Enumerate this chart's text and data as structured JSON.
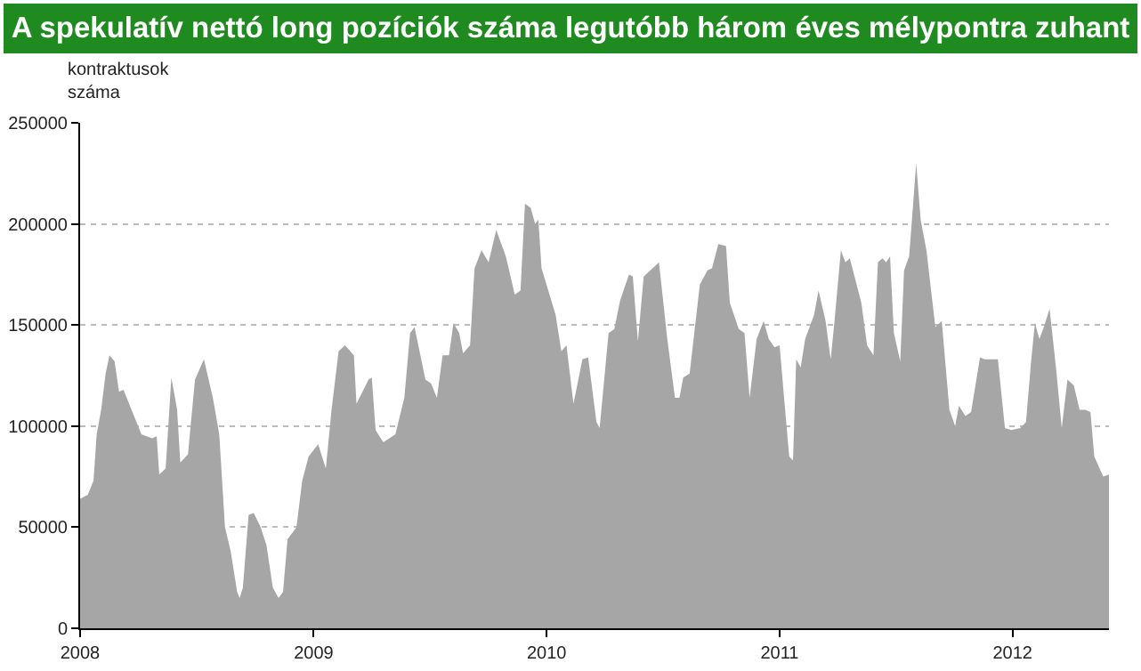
{
  "chart_data": {
    "type": "area",
    "title": "A spekulatív nettó long pozíciók száma legutóbb három éves mélypontra zuhant",
    "ylabel": "kontraktusok száma",
    "x": [
      "2008-01-01",
      "2008-01-13",
      "2008-01-22",
      "2008-01-27",
      "2008-02-03",
      "2008-02-10",
      "2008-02-16",
      "2008-02-24",
      "2008-03-02",
      "2008-03-09",
      "2008-03-23",
      "2008-04-06",
      "2008-04-23",
      "2008-04-30",
      "2008-05-04",
      "2008-05-14",
      "2008-05-23",
      "2008-06-01",
      "2008-06-06",
      "2008-06-18",
      "2008-06-29",
      "2008-07-13",
      "2008-07-27",
      "2008-08-06",
      "2008-08-15",
      "2008-08-24",
      "2008-09-03",
      "2008-09-07",
      "2008-09-12",
      "2008-09-21",
      "2008-09-29",
      "2008-10-10",
      "2008-10-19",
      "2008-10-29",
      "2008-11-07",
      "2008-11-14",
      "2008-11-21",
      "2008-12-05",
      "2008-12-14",
      "2008-12-24",
      "2009-01-08",
      "2009-01-20",
      "2009-01-29",
      "2009-02-09",
      "2009-02-19",
      "2009-03-05",
      "2009-03-09",
      "2009-03-28",
      "2009-04-02",
      "2009-04-08",
      "2009-04-20",
      "2009-05-09",
      "2009-05-23",
      "2009-06-01",
      "2009-06-08",
      "2009-06-25",
      "2009-07-04",
      "2009-07-13",
      "2009-07-22",
      "2009-08-01",
      "2009-08-08",
      "2009-08-17",
      "2009-08-23",
      "2009-09-03",
      "2009-09-10",
      "2009-09-21",
      "2009-10-02",
      "2009-10-14",
      "2009-10-29",
      "2009-11-12",
      "2009-11-21",
      "2009-11-28",
      "2009-12-07",
      "2009-12-14",
      "2009-12-19",
      "2009-12-24",
      "2010-01-15",
      "2010-01-24",
      "2010-02-01",
      "2010-02-12",
      "2010-02-26",
      "2010-03-07",
      "2010-03-20",
      "2010-03-25",
      "2010-04-08",
      "2010-04-17",
      "2010-04-26",
      "2010-05-10",
      "2010-05-16",
      "2010-05-24",
      "2010-06-02",
      "2010-06-26",
      "2010-07-09",
      "2010-07-21",
      "2010-07-28",
      "2010-08-03",
      "2010-08-13",
      "2010-08-29",
      "2010-09-10",
      "2010-09-17",
      "2010-09-27",
      "2010-10-09",
      "2010-10-15",
      "2010-10-29",
      "2010-11-07",
      "2010-11-15",
      "2010-11-26",
      "2010-12-07",
      "2010-12-15",
      "2010-12-24",
      "2011-01-01",
      "2011-01-08",
      "2011-01-16",
      "2011-01-22",
      "2011-01-27",
      "2011-02-03",
      "2011-02-10",
      "2011-02-24",
      "2011-03-03",
      "2011-03-14",
      "2011-03-22",
      "2011-03-28",
      "2011-04-07",
      "2011-04-14",
      "2011-04-21",
      "2011-05-09",
      "2011-05-18",
      "2011-05-28",
      "2011-06-04",
      "2011-06-11",
      "2011-06-17",
      "2011-06-23",
      "2011-06-29",
      "2011-07-09",
      "2011-07-15",
      "2011-07-23",
      "2011-08-03",
      "2011-08-10",
      "2011-08-19",
      "2011-09-02",
      "2011-09-12",
      "2011-09-24",
      "2011-10-03",
      "2011-10-09",
      "2011-10-19",
      "2011-10-28",
      "2011-11-11",
      "2011-11-18",
      "2011-11-30",
      "2011-12-09",
      "2011-12-20",
      "2011-12-30",
      "2012-01-13",
      "2012-01-22",
      "2012-01-30",
      "2012-02-05",
      "2012-02-12",
      "2012-02-19",
      "2012-02-28",
      "2012-03-09",
      "2012-03-18",
      "2012-03-27",
      "2012-04-06",
      "2012-04-15",
      "2012-04-24",
      "2012-05-02",
      "2012-05-08",
      "2012-05-22",
      "2012-05-31"
    ],
    "series": [
      {
        "color": "#a6a6a6",
        "values": [
          64000,
          66000,
          73000,
          96000,
          108000,
          126000,
          135000,
          132000,
          117000,
          118000,
          107000,
          96000,
          94000,
          95000,
          76000,
          79000,
          124000,
          108000,
          82000,
          86000,
          123000,
          133000,
          114000,
          96000,
          50000,
          38000,
          18000,
          15000,
          20000,
          56000,
          57000,
          50000,
          41000,
          20000,
          15000,
          18000,
          44000,
          50000,
          73000,
          85000,
          91000,
          79000,
          108000,
          137000,
          140000,
          135000,
          111000,
          123000,
          124000,
          98000,
          92000,
          96000,
          114000,
          146000,
          149000,
          123000,
          121000,
          114000,
          135000,
          135000,
          151000,
          146000,
          136000,
          140000,
          178000,
          187000,
          181000,
          197000,
          184000,
          165000,
          167000,
          210000,
          208000,
          200000,
          202000,
          178000,
          155000,
          137000,
          140000,
          111000,
          133000,
          134000,
          102000,
          99000,
          146000,
          148000,
          162000,
          175000,
          174000,
          142000,
          174000,
          181000,
          143000,
          114000,
          114000,
          124000,
          126000,
          170000,
          177000,
          178000,
          190000,
          189000,
          161000,
          148000,
          146000,
          114000,
          143000,
          152000,
          143000,
          139000,
          140000,
          114000,
          85000,
          83000,
          133000,
          129000,
          143000,
          155000,
          167000,
          152000,
          133000,
          152000,
          187000,
          181000,
          183000,
          161000,
          140000,
          135000,
          181000,
          183000,
          181000,
          184000,
          146000,
          132000,
          177000,
          184000,
          230000,
          202000,
          187000,
          149000,
          152000,
          108000,
          100000,
          110000,
          105000,
          107000,
          134000,
          133000,
          133000,
          133000,
          99000,
          98000,
          99000,
          102000,
          132000,
          151000,
          143000,
          149000,
          158000,
          129000,
          99000,
          123000,
          120000,
          108000,
          108000,
          107000,
          85000,
          75000,
          76000
        ]
      }
    ],
    "xlim": [
      "2008-01-01",
      "2012-05-31"
    ],
    "xticks": [
      {
        "value": "2008-01-01",
        "label": "2008"
      },
      {
        "value": "2009-01-01",
        "label": "2009"
      },
      {
        "value": "2010-01-01",
        "label": "2010"
      },
      {
        "value": "2011-01-01",
        "label": "2011"
      },
      {
        "value": "2012-01-01",
        "label": "2012"
      }
    ],
    "ylim": [
      0,
      250000
    ],
    "yticks": [
      0,
      50000,
      100000,
      150000,
      200000,
      250000
    ],
    "grid": "y",
    "marker": "none"
  }
}
